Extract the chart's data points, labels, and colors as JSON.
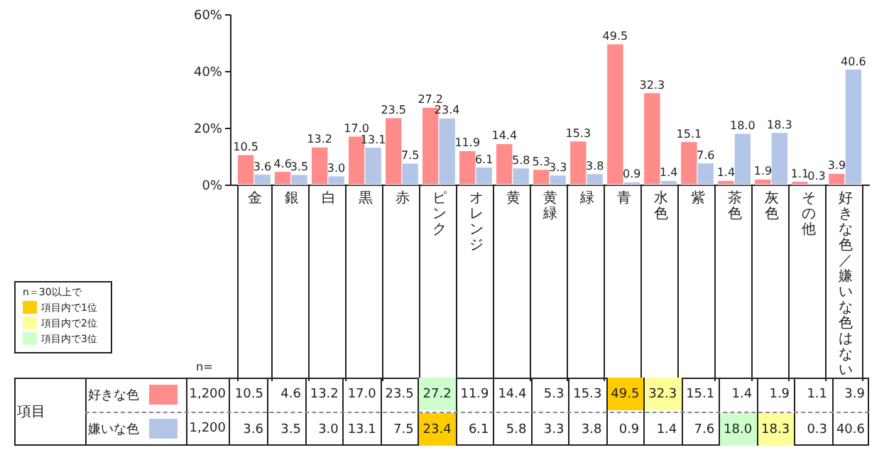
{
  "chart_data": {
    "type": "bar",
    "categories": [
      "金",
      "銀",
      "白",
      "黒",
      "赤",
      "ピンク",
      "オレンジ",
      "黄",
      "黄緑",
      "緑",
      "青",
      "水色",
      "紫",
      "茶色",
      "灰色",
      "その他",
      "好きな色／嫌いな色はない"
    ],
    "series": [
      {
        "name": "好きな色",
        "color": "#ff8b8b",
        "values": [
          10.5,
          4.6,
          13.2,
          17.0,
          23.5,
          27.2,
          11.9,
          14.4,
          5.3,
          15.3,
          49.5,
          32.3,
          15.1,
          1.4,
          1.9,
          1.1,
          3.9
        ],
        "value_labels": [
          "10.5",
          "4.6",
          "13.2",
          "17.0",
          "23.5",
          "27.2",
          "11.9",
          "14.4",
          "5.3",
          "15.3",
          "49.5",
          "32.3",
          "15.1",
          "1.4",
          "1.9",
          "1.1",
          "3.9"
        ]
      },
      {
        "name": "嫌いな色",
        "color": "#b4c6e7",
        "values": [
          3.6,
          3.5,
          3.0,
          13.1,
          7.5,
          23.4,
          6.1,
          5.8,
          3.3,
          3.8,
          0.9,
          1.4,
          7.6,
          18.0,
          18.3,
          0.3,
          40.6
        ],
        "value_labels": [
          "3.6",
          "3.5",
          "3.0",
          "13.1",
          "7.5",
          "23.4",
          "6.1",
          "5.8",
          "3.3",
          "3.8",
          "0.9",
          "1.4",
          "7.6",
          "18.0",
          "18.3",
          "0.3",
          "40.6"
        ]
      }
    ],
    "ylim": [
      0,
      60
    ],
    "yticks": [
      {
        "value": 0,
        "label": "0%"
      },
      {
        "value": 20,
        "label": "20%"
      },
      {
        "value": 40,
        "label": "40%"
      },
      {
        "value": 60,
        "label": "60%"
      }
    ],
    "grid": false,
    "legend": "bottom left",
    "annotations": [
      "n＝30以上で",
      "項目内で1位",
      "項目内で2位",
      "項目内で3位",
      "項目",
      "n=",
      "1,200",
      "1,200"
    ]
  }
}
